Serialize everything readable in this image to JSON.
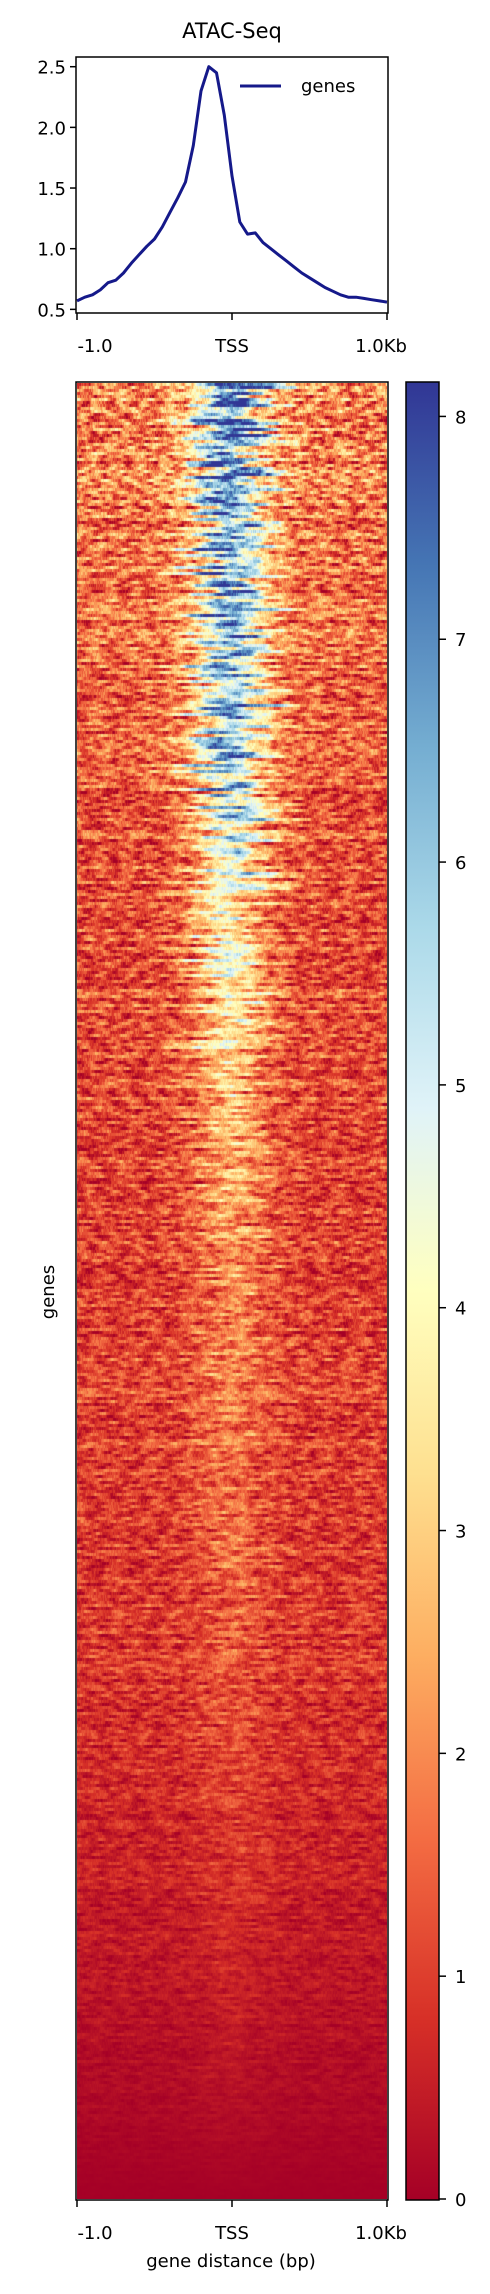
{
  "chart_data": [
    {
      "type": "line",
      "title": "ATAC-Seq",
      "xlabel": "",
      "ylabel": "",
      "x_tick_labels": [
        "-1.0",
        "TSS",
        "1.0Kb"
      ],
      "x_tick_positions_bp": [
        -1000,
        0,
        1000
      ],
      "xlim": [
        -1000,
        1000
      ],
      "ylim": [
        0.47,
        2.58
      ],
      "y_ticks": [
        0.5,
        1.0,
        1.5,
        2.0,
        2.5
      ],
      "y_tick_labels": [
        "0.5",
        "1.0",
        "1.5",
        "2.0",
        "2.5"
      ],
      "legend_position": "top-right",
      "grid": false,
      "series": [
        {
          "name": "genes",
          "color": "#15198a",
          "x": [
            -1000,
            -950,
            -900,
            -850,
            -800,
            -750,
            -700,
            -650,
            -600,
            -550,
            -500,
            -450,
            -400,
            -350,
            -300,
            -250,
            -200,
            -150,
            -100,
            -50,
            0,
            50,
            100,
            150,
            200,
            250,
            300,
            350,
            400,
            450,
            500,
            550,
            600,
            650,
            700,
            750,
            800,
            850,
            900,
            950,
            1000
          ],
          "y": [
            0.57,
            0.6,
            0.62,
            0.66,
            0.72,
            0.74,
            0.8,
            0.88,
            0.95,
            1.02,
            1.08,
            1.18,
            1.3,
            1.42,
            1.55,
            1.85,
            2.3,
            2.5,
            2.45,
            2.1,
            1.6,
            1.22,
            1.12,
            1.13,
            1.05,
            1.0,
            0.95,
            0.9,
            0.85,
            0.8,
            0.76,
            0.72,
            0.68,
            0.65,
            0.62,
            0.6,
            0.6,
            0.59,
            0.58,
            0.57,
            0.56
          ]
        }
      ]
    },
    {
      "type": "heatmap",
      "ylabel": "genes",
      "xlabel": "gene distance (bp)",
      "x_tick_labels": [
        "-1.0",
        "TSS",
        "1.0Kb"
      ],
      "x_tick_positions_bp": [
        -1000,
        0,
        1000
      ],
      "xlim": [
        -1000,
        1000
      ],
      "colormap": "RdYlBu",
      "colormap_stops": [
        "#a50026",
        "#d73027",
        "#f46d43",
        "#fdae61",
        "#fee090",
        "#ffffbf",
        "#e0f3f8",
        "#abd9e9",
        "#74add1",
        "#4575b4",
        "#313695"
      ],
      "value_range": [
        0,
        8.15
      ],
      "colorbar_ticks": [
        0,
        1,
        2,
        3,
        4,
        5,
        6,
        7,
        8
      ],
      "colorbar_tick_labels": [
        "0",
        "1",
        "2",
        "3",
        "4",
        "5",
        "6",
        "7",
        "8"
      ],
      "rows_sorted_by": "mean signal, descending",
      "row_profile_fraction": [
        0.0,
        0.1,
        0.2,
        0.3,
        0.4,
        0.5,
        0.6,
        0.7,
        0.8,
        0.9,
        1.0
      ],
      "approx_center_value_by_row_fraction": [
        7.5,
        7.2,
        6.2,
        4.3,
        3.0,
        2.2,
        1.8,
        1.4,
        1.0,
        0.5,
        0.0
      ],
      "approx_flank_value_by_row_fraction": [
        2.0,
        1.6,
        1.4,
        1.3,
        1.2,
        1.1,
        1.0,
        0.9,
        0.6,
        0.3,
        0.0
      ]
    }
  ]
}
